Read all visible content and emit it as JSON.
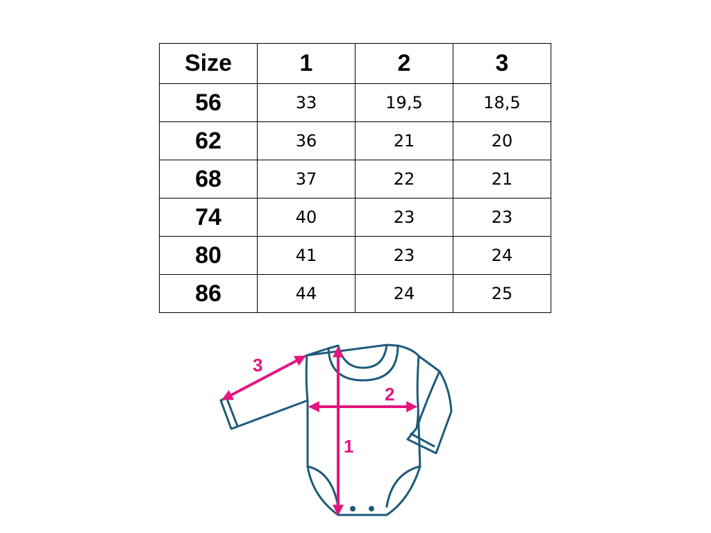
{
  "table": {
    "headers": [
      "Size",
      "1",
      "2",
      "3"
    ],
    "rows": [
      [
        "56",
        "33",
        "19,5",
        "18,5"
      ],
      [
        "62",
        "36",
        "21",
        "20"
      ],
      [
        "68",
        "37",
        "22",
        "21"
      ],
      [
        "74",
        "40",
        "23",
        "23"
      ],
      [
        "80",
        "41",
        "23",
        "24"
      ],
      [
        "86",
        "44",
        "24",
        "25"
      ]
    ]
  },
  "diagram": {
    "labels": {
      "sleeve": "3",
      "chest": "2",
      "length": "1"
    },
    "colors": {
      "outline": "#1d5a7a",
      "arrow": "#e6147f"
    }
  }
}
